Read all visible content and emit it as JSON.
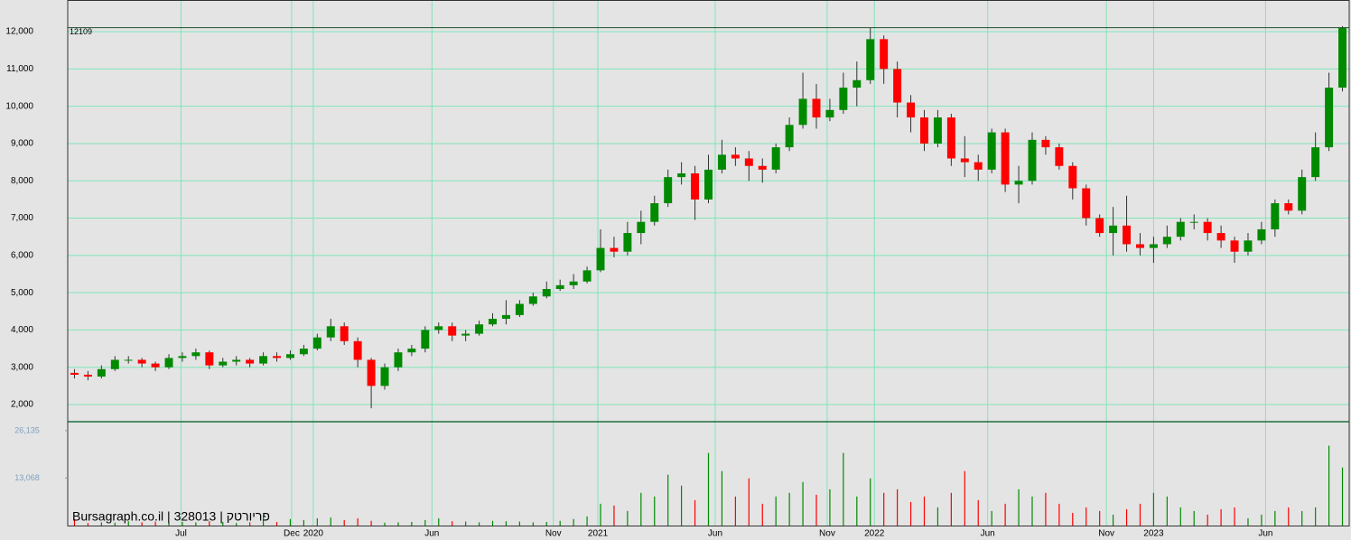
{
  "chart_data": {
    "type": "candlestick",
    "up_color": "#008a00",
    "down_color": "#ff0000",
    "grid": true,
    "ylim": [
      1540,
      12850
    ],
    "yticks": [
      {
        "value": 2000,
        "label": "2,000"
      },
      {
        "value": 3000,
        "label": "3,000"
      },
      {
        "value": 4000,
        "label": "4,000"
      },
      {
        "value": 5000,
        "label": "5,000"
      },
      {
        "value": 6000,
        "label": "6,000"
      },
      {
        "value": 7000,
        "label": "7,000"
      },
      {
        "value": 8000,
        "label": "8,000"
      },
      {
        "value": 9000,
        "label": "9,000"
      },
      {
        "value": 10000,
        "label": "10,000"
      },
      {
        "value": 11000,
        "label": "11,000"
      },
      {
        "value": 12000,
        "label": "12,000"
      }
    ],
    "xlim": [
      -0.5,
      94.5
    ],
    "xticks": [
      {
        "value": 7.9,
        "label": "Jul"
      },
      {
        "value": 16.1,
        "label": "Dec"
      },
      {
        "value": 17.7,
        "label": "2020"
      },
      {
        "value": 26.5,
        "label": "Jun"
      },
      {
        "value": 35.5,
        "label": "Nov"
      },
      {
        "value": 38.8,
        "label": "2021"
      },
      {
        "value": 47.5,
        "label": "Jun"
      },
      {
        "value": 55.8,
        "label": "Nov"
      },
      {
        "value": 59.3,
        "label": "2022"
      },
      {
        "value": 67.7,
        "label": "Jun"
      },
      {
        "value": 76.5,
        "label": "Nov"
      },
      {
        "value": 80,
        "label": "2023"
      },
      {
        "value": 88.3,
        "label": "Jun"
      }
    ],
    "last_price": 12109,
    "watermark": "Bursagraph.co.il | 328013 | פריורטק",
    "open": [
      2850,
      2800,
      2750,
      2950,
      3200,
      3200,
      3100,
      3000,
      3250,
      3300,
      3400,
      3050,
      3150,
      3200,
      3100,
      3300,
      3250,
      3350,
      3500,
      3800,
      4100,
      3700,
      3200,
      2500,
      3000,
      3400,
      3500,
      4000,
      4100,
      3850,
      3900,
      4150,
      4300,
      4400,
      4700,
      4900,
      5100,
      5200,
      5300,
      5600,
      6200,
      6100,
      6600,
      6900,
      7400,
      8100,
      8200,
      7500,
      8300,
      8700,
      8600,
      8400,
      8300,
      8900,
      9500,
      10200,
      9700,
      9900,
      10500,
      10700,
      11800,
      11000,
      10100,
      9700,
      9000,
      9700,
      8600,
      8500,
      8300,
      9300,
      7900,
      8000,
      9100,
      8900,
      8400,
      7800,
      7000,
      6600,
      6800,
      6300,
      6200,
      6300,
      6500,
      6900,
      6900,
      6600,
      6400,
      6100,
      6400,
      6700,
      7400,
      7200,
      8100,
      8900,
      10500
    ],
    "high": [
      2950,
      2900,
      3050,
      3300,
      3300,
      3250,
      3150,
      3350,
      3400,
      3500,
      3450,
      3250,
      3300,
      3250,
      3400,
      3400,
      3450,
      3600,
      3900,
      4300,
      4200,
      3800,
      3250,
      3100,
      3500,
      3600,
      4100,
      4200,
      4200,
      4000,
      4250,
      4450,
      4800,
      4800,
      5000,
      5300,
      5350,
      5500,
      5700,
      6700,
      6500,
      6900,
      7200,
      7600,
      8300,
      8500,
      8400,
      8700,
      9100,
      8900,
      8800,
      8600,
      9000,
      9700,
      10900,
      10600,
      10200,
      10900,
      11200,
      12100,
      11900,
      11200,
      10300,
      9900,
      9900,
      9800,
      9200,
      8700,
      9400,
      9400,
      8400,
      9300,
      9200,
      9000,
      8500,
      7900,
      7100,
      7300,
      7600,
      6600,
      6500,
      6800,
      7000,
      7100,
      7000,
      6800,
      6500,
      6600,
      6900,
      7500,
      7500,
      8300,
      9300,
      10900,
      12150
    ],
    "low": [
      2700,
      2650,
      2700,
      2900,
      3100,
      3000,
      2900,
      2950,
      3150,
      3200,
      2950,
      3000,
      3050,
      3000,
      3050,
      3150,
      3200,
      3300,
      3450,
      3700,
      3600,
      3000,
      1900,
      2400,
      2900,
      3300,
      3400,
      3900,
      3700,
      3700,
      3850,
      4100,
      4150,
      4350,
      4650,
      4850,
      5050,
      5100,
      5250,
      5550,
      5950,
      6000,
      6300,
      6800,
      7300,
      7900,
      6950,
      7400,
      8200,
      8400,
      8000,
      7950,
      8200,
      8800,
      9400,
      9400,
      9600,
      9800,
      10000,
      10600,
      10600,
      9700,
      9300,
      8800,
      8900,
      8400,
      8100,
      8000,
      8200,
      7700,
      7400,
      7900,
      8700,
      8300,
      7500,
      6800,
      6500,
      6000,
      6100,
      6000,
      5800,
      6200,
      6400,
      6700,
      6400,
      6200,
      5800,
      6000,
      6300,
      6500,
      7100,
      7100,
      8000,
      8800,
      10400
    ],
    "close": [
      2800,
      2750,
      2950,
      3200,
      3200,
      3100,
      3000,
      3250,
      3300,
      3400,
      3050,
      3150,
      3200,
      3100,
      3300,
      3250,
      3350,
      3500,
      3800,
      4100,
      3700,
      3200,
      2500,
      3000,
      3400,
      3500,
      4000,
      4100,
      3850,
      3900,
      4150,
      4300,
      4400,
      4700,
      4900,
      5100,
      5200,
      5300,
      5600,
      6200,
      6100,
      6600,
      6900,
      7400,
      8100,
      8200,
      7500,
      8300,
      8700,
      8600,
      8400,
      8300,
      8900,
      9500,
      10200,
      9700,
      9900,
      10500,
      10700,
      11800,
      11000,
      10100,
      9700,
      9000,
      9700,
      8600,
      8500,
      8300,
      9300,
      7900,
      8000,
      9100,
      8900,
      8400,
      7800,
      7000,
      6600,
      6800,
      6300,
      6200,
      6300,
      6500,
      6900,
      6900,
      6600,
      6400,
      6100,
      6400,
      6700,
      7400,
      7200,
      8100,
      8900,
      10500,
      12100
    ],
    "volume": {
      "ylim": [
        0,
        28600
      ],
      "yticks": [
        {
          "value": 13068,
          "label": "13,068"
        },
        {
          "value": 26135,
          "label": "26,135"
        }
      ],
      "values": [
        1800,
        700,
        900,
        800,
        1200,
        900,
        1100,
        800,
        1000,
        900,
        1200,
        1000,
        700,
        900,
        2500,
        1000,
        1800,
        1500,
        2000,
        2200,
        1500,
        2000,
        1300,
        800,
        900,
        1000,
        1500,
        2000,
        1200,
        1100,
        900,
        1300,
        1200,
        1100,
        900,
        1000,
        1300,
        1800,
        2500,
        6000,
        5500,
        4000,
        9000,
        8000,
        14000,
        11000,
        7000,
        20000,
        15000,
        8000,
        13000,
        6000,
        8000,
        9000,
        12000,
        8500,
        10000,
        20000,
        8000,
        13000,
        9000,
        10000,
        6500,
        8000,
        5000,
        9000,
        15000,
        7000,
        4000,
        6000,
        10000,
        8000,
        9000,
        6000,
        3500,
        5000,
        4000,
        3000,
        4500,
        6000,
        9000,
        8000,
        5000,
        4000,
        3000,
        4500,
        5000,
        2000,
        3000,
        4000,
        5000,
        4000,
        5000,
        22000,
        16000
      ]
    }
  }
}
